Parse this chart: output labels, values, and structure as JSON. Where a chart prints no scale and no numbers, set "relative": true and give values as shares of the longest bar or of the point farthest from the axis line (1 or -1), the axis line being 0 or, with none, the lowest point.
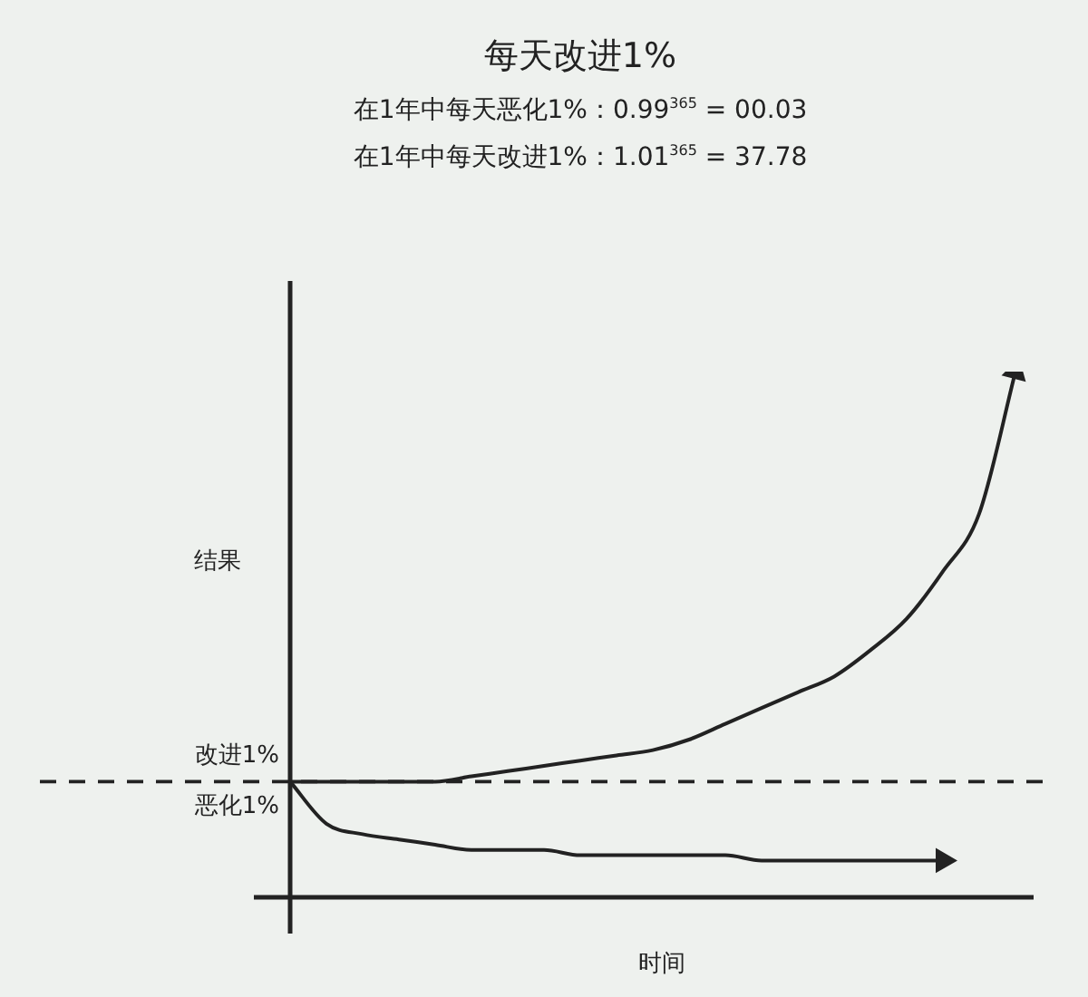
{
  "chart_data": {
    "type": "line",
    "title": "每天改进1%",
    "annotations": [
      "在1年中每天恶化1%：0.99$^{365}$ = 00.03",
      "在1年中每天改进1%：1.01$^{365}$ = 37.78"
    ],
    "xlabel": "时间",
    "ylabel": "结果",
    "relative": true,
    "marker": "none",
    "line_style": "solid",
    "categories": [
      null,
      null,
      null,
      null,
      null,
      null,
      null,
      null,
      null,
      null,
      null,
      null,
      null,
      null,
      null,
      null,
      null,
      null,
      null,
      null,
      null
    ],
    "series": [
      {
        "name": "改进1%",
        "color": "#222222",
        "values": [
          0.22,
          0.22,
          0.22,
          0.22,
          0.22,
          0.23,
          0.24,
          0.25,
          0.26,
          0.27,
          0.28,
          0.3,
          0.33,
          0.36,
          0.39,
          0.42,
          0.47,
          0.53,
          0.62,
          0.73,
          1
        ]
      },
      {
        "name": "恶化1%",
        "color": "#222222",
        "values": [
          0.22,
          0.14,
          0.12,
          0.11,
          0.1,
          0.09,
          0.09,
          0.09,
          0.08,
          0.08,
          0.08,
          0.08,
          0.08,
          0.07,
          0.07,
          0.07,
          0.07,
          0.07,
          0.07,
          null,
          null
        ]
      }
    ],
    "ref_lines": [
      {
        "axis": "y",
        "value": 0.22,
        "line_style": "dashed",
        "color": "#222222"
      }
    ]
  }
}
